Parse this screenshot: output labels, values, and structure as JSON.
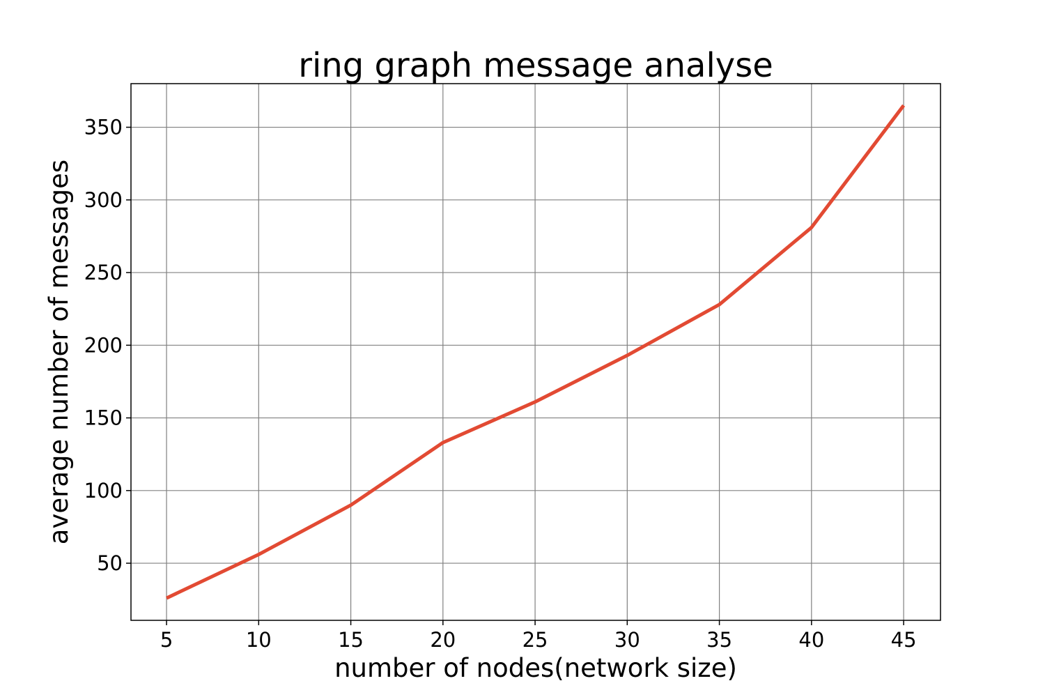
{
  "chart_data": {
    "type": "line",
    "title": "ring graph message analyse",
    "xlabel": "number of nodes(network size)",
    "ylabel": "average number of messages",
    "x": [
      5,
      10,
      15,
      20,
      25,
      30,
      35,
      40,
      45
    ],
    "series": [
      {
        "values": [
          26,
          56,
          90,
          133,
          161,
          193,
          228,
          281,
          365
        ],
        "color": "#e24a33"
      }
    ],
    "xticks": [
      5,
      10,
      15,
      20,
      25,
      30,
      35,
      40,
      45
    ],
    "yticks": [
      50,
      100,
      150,
      200,
      250,
      300,
      350
    ],
    "xlim": [
      3.07,
      47.0
    ],
    "ylim": [
      10.7,
      380.0
    ],
    "grid": true,
    "legend": "none"
  }
}
